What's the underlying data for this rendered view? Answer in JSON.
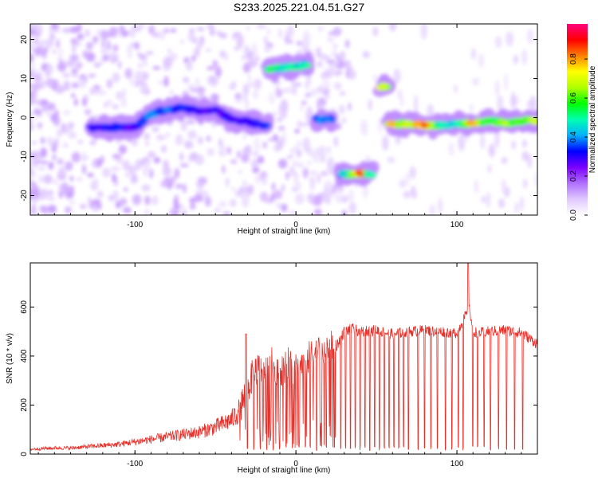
{
  "title": "S233.2025.221.04.51.G27",
  "chart_data": [
    {
      "type": "heatmap",
      "xlabel": "Height of straight line (km)",
      "ylabel": "Frequency (Hz)",
      "xlim": [
        -165,
        150
      ],
      "ylim": [
        -25,
        24
      ],
      "xticks": [
        -100,
        0,
        100
      ],
      "yticks": [
        -20,
        -10,
        0,
        10,
        20
      ],
      "colorbar": {
        "label": "Normalized spectral amplitude",
        "range": [
          0.0,
          0.98
        ],
        "ticks": [
          0.0,
          0.2,
          0.4,
          0.6,
          0.8
        ],
        "tick_labels": [
          "0.0",
          "0.2",
          "0.4",
          "0.6",
          "0.8"
        ],
        "colors": [
          "#ffffff",
          "#e0c8ff",
          "#b070ff",
          "#7a00ff",
          "#0000ff",
          "#00b0ff",
          "#00ffb0",
          "#00ff00",
          "#b0ff00",
          "#ffff00",
          "#ff8000",
          "#ff0000",
          "#ff0080"
        ]
      },
      "features": [
        {
          "label": "main track",
          "x": [
            -125,
            -110,
            -100,
            -90,
            -80,
            -70,
            -60,
            -50,
            -40,
            -30,
            -20
          ],
          "y": [
            -2.5,
            -2.5,
            -2.5,
            1.0,
            2.0,
            2.5,
            1.5,
            2.0,
            -0.5,
            -1.0,
            -2.0
          ],
          "amplitude": [
            0.3,
            0.35,
            0.3,
            0.4,
            0.4,
            0.35,
            0.3,
            0.3,
            0.3,
            0.3,
            0.35
          ]
        },
        {
          "label": "upper blob",
          "x": [
            -15,
            -5,
            5
          ],
          "y": [
            12.5,
            13.0,
            13.5
          ],
          "amplitude": [
            0.55,
            0.5,
            0.5
          ]
        },
        {
          "label": "small blob",
          "x": [
            15,
            20
          ],
          "y": [
            -0.5,
            -0.5
          ],
          "amplitude": [
            0.4,
            0.4
          ]
        },
        {
          "label": "lower blob",
          "x": [
            30,
            40,
            45
          ],
          "y": [
            -14.5,
            -14.5,
            -14.5
          ],
          "amplitude": [
            0.45,
            0.9,
            0.5
          ]
        },
        {
          "label": "high blob",
          "x": [
            55
          ],
          "y": [
            8
          ],
          "amplitude": [
            0.7
          ]
        },
        {
          "label": "right track",
          "x": [
            60,
            70,
            80,
            90,
            100,
            110,
            120,
            130,
            140,
            148
          ],
          "y": [
            -1.5,
            -1.8,
            -2.0,
            -2.0,
            -1.5,
            -1.5,
            -1.0,
            -1.5,
            -1.0,
            -0.8
          ],
          "amplitude": [
            0.8,
            0.7,
            0.9,
            0.5,
            0.5,
            0.8,
            0.6,
            0.7,
            0.6,
            0.7
          ]
        }
      ]
    },
    {
      "type": "line",
      "xlabel": "Height of straight line (km)",
      "ylabel": "SNR (10 * v/v)",
      "xlim": [
        -165,
        150
      ],
      "ylim": [
        0,
        780
      ],
      "xticks": [
        -100,
        0,
        100
      ],
      "yticks": [
        0,
        200,
        400,
        600
      ],
      "series": [
        {
          "name": "SNR",
          "color": "#e8302a",
          "x": [
            -165,
            -150,
            -140,
            -130,
            -120,
            -110,
            -100,
            -90,
            -80,
            -70,
            -60,
            -50,
            -40,
            -35,
            -30,
            -25,
            -20,
            -15,
            -10,
            -5,
            0,
            5,
            10,
            15,
            20,
            25,
            30,
            35,
            40,
            50,
            60,
            70,
            80,
            90,
            100,
            105,
            108,
            110,
            115,
            120,
            130,
            140,
            150
          ],
          "y": [
            20,
            25,
            25,
            30,
            35,
            40,
            50,
            60,
            70,
            80,
            90,
            110,
            140,
            180,
            270,
            350,
            330,
            370,
            340,
            370,
            340,
            380,
            400,
            420,
            430,
            440,
            500,
            510,
            500,
            505,
            490,
            500,
            505,
            500,
            495,
            560,
            590,
            500,
            495,
            500,
            505,
            495,
            450
          ],
          "spikes": [
            {
              "x": -31,
              "y": 490
            },
            {
              "x": 107,
              "y": 780
            }
          ],
          "dropouts_x": [
            -30,
            -26,
            -22,
            -18,
            -14,
            -10,
            -6,
            -2,
            2,
            6,
            9,
            13,
            16,
            19,
            24,
            28,
            31,
            34,
            37,
            40,
            43,
            46,
            49,
            52,
            55,
            58,
            61,
            64,
            67,
            70,
            76,
            80,
            84,
            88,
            93,
            97,
            101,
            104,
            110,
            113,
            117,
            121,
            126,
            131,
            136,
            141
          ]
        }
      ]
    }
  ]
}
